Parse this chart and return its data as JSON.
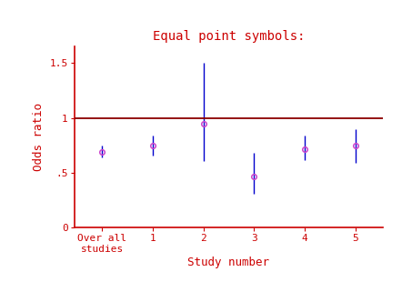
{
  "title": "Equal point symbols:",
  "ylabel": "Odds ratio",
  "xlabel": "Study number",
  "background_color": "#ffffff",
  "title_color": "#cc0000",
  "axis_color": "#cc0000",
  "label_color": "#cc0000",
  "ref_line_y": 1.0,
  "ref_line_color": "#8b0000",
  "ylim": [
    0,
    1.65
  ],
  "yticks": [
    0,
    0.5,
    1.0,
    1.5
  ],
  "ytick_labels": [
    "0",
    ".5",
    "1",
    "1.5"
  ],
  "x_positions": [
    0,
    1,
    2,
    3,
    4,
    5
  ],
  "x_tick_labels": [
    "Over all\nstudies",
    "1",
    "2",
    "3",
    "4",
    "5"
  ],
  "or_values": [
    0.695,
    0.748,
    0.95,
    0.468,
    0.715,
    0.748
  ],
  "ci_lower": [
    0.638,
    0.66,
    0.61,
    0.308,
    0.618,
    0.595
  ],
  "ci_upper": [
    0.752,
    0.84,
    1.5,
    0.68,
    0.84,
    0.895
  ],
  "point_color": "#cc44cc",
  "ci_color": "#0000cc",
  "point_size": 4,
  "ci_linewidth": 1.0,
  "ref_linewidth": 1.3,
  "font_family": "monospace",
  "title_fontsize": 10,
  "label_fontsize": 9,
  "tick_fontsize": 8,
  "xlim": [
    -0.55,
    5.55
  ]
}
